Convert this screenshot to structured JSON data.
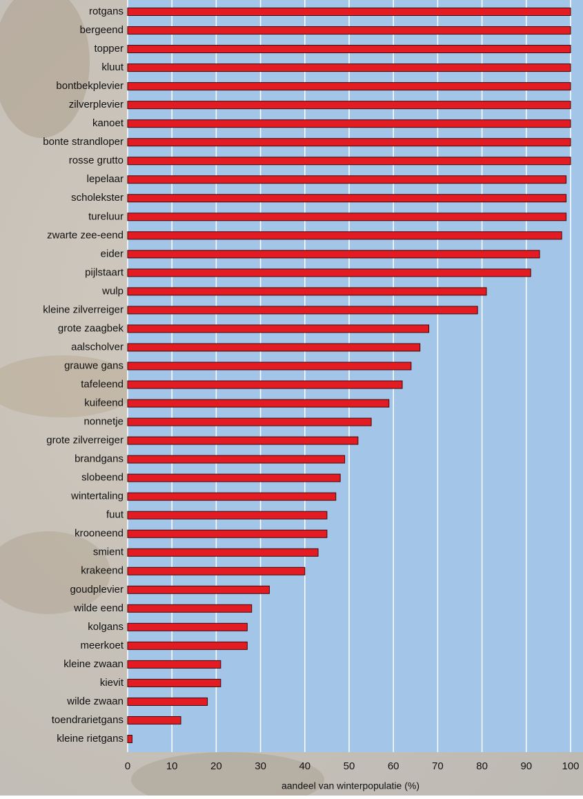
{
  "chart_data": {
    "type": "barh",
    "x_label": "aandeel van winterpopulatie (%)",
    "categories": [
      "rotgans",
      "bergeend",
      "topper",
      "kluut",
      "bontbekplevier",
      "zilverplevier",
      "kanoet",
      "bonte strandloper",
      "rosse grutto",
      "lepelaar",
      "scholekster",
      "tureluur",
      "zwarte zee-eend",
      "eider",
      "pijlstaart",
      "wulp",
      "kleine zilverreiger",
      "grote zaagbek",
      "aalscholver",
      "grauwe gans",
      "tafeleend",
      "kuifeend",
      "nonnetje",
      "grote zilverreiger",
      "brandgans",
      "slobeend",
      "wintertaling",
      "fuut",
      "krooneend",
      "smient",
      "krakeend",
      "goudplevier",
      "wilde eend",
      "kolgans",
      "meerkoet",
      "kleine zwaan",
      "kievit",
      "wilde zwaan",
      "toendrarietgans",
      "kleine rietgans"
    ],
    "values": [
      100,
      100,
      100,
      100,
      100,
      100,
      100,
      100,
      100,
      99,
      99,
      99,
      98,
      93,
      91,
      81,
      79,
      68,
      66,
      64,
      62,
      59,
      55,
      52,
      49,
      48,
      47,
      45,
      45,
      43,
      40,
      32,
      28,
      27,
      27,
      21,
      21,
      18,
      12,
      1
    ],
    "color": "#e31b23",
    "xlim": [
      0,
      100
    ],
    "xticks": [
      0,
      10,
      20,
      30,
      40,
      50,
      60,
      70,
      80,
      90,
      100
    ],
    "grid": true
  }
}
